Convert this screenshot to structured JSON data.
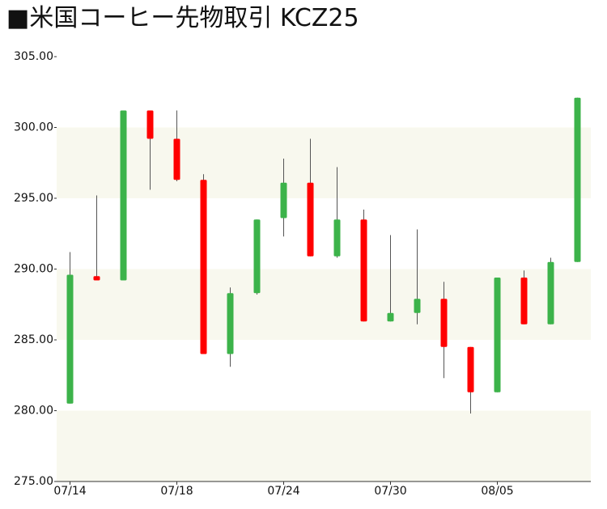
{
  "chart_data": {
    "type": "candlestick",
    "title": "■米国コーヒー先物取引  KCZ25",
    "categories": [
      "07/14",
      null,
      null,
      null,
      "07/18",
      null,
      null,
      null,
      "07/24",
      null,
      null,
      null,
      "07/30",
      null,
      null,
      null,
      "08/05",
      null,
      null,
      null
    ],
    "open": [
      280.5,
      289.5,
      289.2,
      301.2,
      299.2,
      296.3,
      284.0,
      288.3,
      293.6,
      296.1,
      290.9,
      293.5,
      286.3,
      286.9,
      287.9,
      284.5,
      281.3,
      289.4,
      286.1,
      290.5
    ],
    "high": [
      291.2,
      295.2,
      301.2,
      301.2,
      301.2,
      296.7,
      288.7,
      293.5,
      297.8,
      299.2,
      297.2,
      294.2,
      292.4,
      292.8,
      289.1,
      284.5,
      289.4,
      289.9,
      290.8,
      302.1
    ],
    "low": [
      280.5,
      289.2,
      289.2,
      295.6,
      296.2,
      284.0,
      283.1,
      288.2,
      292.3,
      290.9,
      290.8,
      286.3,
      286.3,
      286.1,
      282.3,
      279.8,
      281.3,
      286.1,
      286.1,
      290.5
    ],
    "close": [
      289.6,
      289.2,
      301.2,
      299.2,
      296.3,
      284.0,
      288.3,
      293.5,
      296.1,
      290.9,
      293.5,
      286.3,
      286.9,
      287.9,
      284.5,
      281.3,
      289.4,
      286.1,
      290.5,
      302.1
    ],
    "up_color": "#3cb34a",
    "down_color": "#ff0000",
    "band_color": "#f8f8ee",
    "ylim": [
      275,
      305
    ],
    "yticks": [
      {
        "value": 275,
        "label": "275.00"
      },
      {
        "value": 280,
        "label": "280.00"
      },
      {
        "value": 285,
        "label": "285.00"
      },
      {
        "value": 290,
        "label": "290.00"
      },
      {
        "value": 295,
        "label": "295.00"
      },
      {
        "value": 300,
        "label": "300.00"
      },
      {
        "value": 305,
        "label": "305.00"
      }
    ],
    "grid": true
  }
}
